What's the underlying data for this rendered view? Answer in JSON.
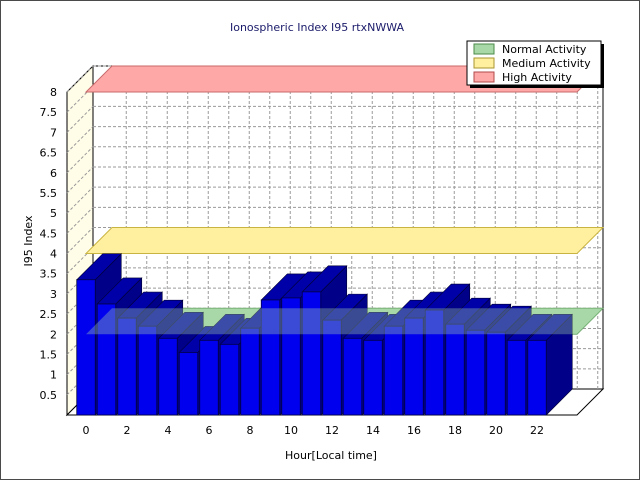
{
  "chart_data": {
    "type": "bar",
    "title": "Ionospheric Index I95 rtxNWWA",
    "xlabel": "Hour[Local time]",
    "ylabel": "I95 Index",
    "ylim": [
      0,
      8
    ],
    "yticks": [
      "0.5",
      "1",
      "1.5",
      "2",
      "2.5",
      "3",
      "3.5",
      "4",
      "4.5",
      "5",
      "5.5",
      "6",
      "6.5",
      "7",
      "7.5",
      "8"
    ],
    "xticks": [
      "0",
      "2",
      "4",
      "6",
      "8",
      "10",
      "12",
      "14",
      "16",
      "18",
      "20",
      "22"
    ],
    "hours": [
      0,
      1,
      2,
      3,
      4,
      5,
      6,
      7,
      8,
      9,
      10,
      11,
      12,
      13,
      14,
      15,
      16,
      17,
      18,
      19,
      20,
      21,
      22
    ],
    "values": [
      3.35,
      2.75,
      2.4,
      2.2,
      1.9,
      1.55,
      1.85,
      1.75,
      2.15,
      2.85,
      2.9,
      3.05,
      2.35,
      1.9,
      1.85,
      2.2,
      2.4,
      2.6,
      2.25,
      2.1,
      2.05,
      1.85,
      1.85
    ],
    "bar_color": "#0000ee",
    "grid": true,
    "legend_position": "top-right",
    "bands": [
      {
        "name": "Normal Activity",
        "value": 2,
        "color": "#a8d8a8"
      },
      {
        "name": "Medium Activity",
        "value": 4,
        "color": "#fff0a0"
      },
      {
        "name": "High Activity",
        "value": 8,
        "color": "#ffa8a8"
      }
    ]
  }
}
